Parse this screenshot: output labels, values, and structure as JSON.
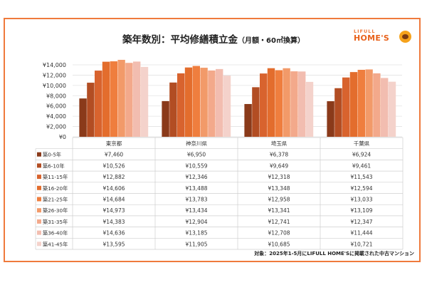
{
  "title": "築年数別：平均修繕積立金",
  "subtitle": "（月額・60㎡換算）",
  "logo": {
    "small": "LIFULL",
    "big": "HOME'S"
  },
  "footnote": "対象：2025年1-5月にLIFULL HOME'Sに掲載された中古マンション",
  "colors": [
    "#8a3a1a",
    "#b24d23",
    "#d8632e",
    "#e36d2d",
    "#ef7e3e",
    "#f29a69",
    "#f3a98b",
    "#f2bdb0",
    "#f4d2cb"
  ],
  "chart_data": {
    "type": "bar",
    "categories": [
      "東京都",
      "神奈川県",
      "埼玉県",
      "千葉県"
    ],
    "ylim": [
      0,
      14000
    ],
    "yticks": [
      "¥14,000",
      "¥12,000",
      "¥10,000",
      "¥8,000",
      "¥6,000",
      "¥4,000",
      "¥2,000",
      "¥0"
    ],
    "ytick_values": [
      14000,
      12000,
      10000,
      8000,
      6000,
      4000,
      2000,
      0
    ],
    "series": [
      {
        "name": "築0-5年",
        "values": [
          7460,
          6950,
          6378,
          6924
        ],
        "labels": [
          "¥7,460",
          "¥6,950",
          "¥6,378",
          "¥6,924"
        ]
      },
      {
        "name": "築6-10年",
        "values": [
          10526,
          10559,
          9649,
          9461
        ],
        "labels": [
          "¥10,526",
          "¥10,559",
          "¥9,649",
          "¥9,461"
        ]
      },
      {
        "name": "築11-15年",
        "values": [
          12882,
          12346,
          12318,
          11543
        ],
        "labels": [
          "¥12,882",
          "¥12,346",
          "¥12,318",
          "¥11,543"
        ]
      },
      {
        "name": "築16-20年",
        "values": [
          14606,
          13488,
          13348,
          12594
        ],
        "labels": [
          "¥14,606",
          "¥13,488",
          "¥13,348",
          "¥12,594"
        ]
      },
      {
        "name": "築21-25年",
        "values": [
          14684,
          13783,
          12958,
          13033
        ],
        "labels": [
          "¥14,684",
          "¥13,783",
          "¥12,958",
          "¥13,033"
        ]
      },
      {
        "name": "築26-30年",
        "values": [
          14973,
          13434,
          13341,
          13109
        ],
        "labels": [
          "¥14,973",
          "¥13,434",
          "¥13,341",
          "¥13,109"
        ]
      },
      {
        "name": "築31-35年",
        "values": [
          14383,
          12904,
          12741,
          12347
        ],
        "labels": [
          "¥14,383",
          "¥12,904",
          "¥12,741",
          "¥12,347"
        ]
      },
      {
        "name": "築36-40年",
        "values": [
          14636,
          13185,
          12708,
          11444
        ],
        "labels": [
          "¥14,636",
          "¥13,185",
          "¥12,708",
          "¥11,444"
        ]
      },
      {
        "name": "築41-45年",
        "values": [
          13595,
          11905,
          10685,
          10721
        ],
        "labels": [
          "¥13,595",
          "¥11,905",
          "¥10,685",
          "¥10,721"
        ]
      }
    ]
  }
}
